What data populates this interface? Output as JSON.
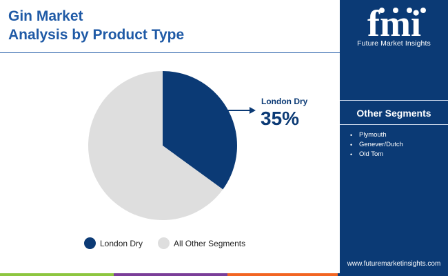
{
  "header": {
    "title_line1": "Gin Market",
    "title_line2": "Analysis by Product Type"
  },
  "brand": {
    "logo_text": "fmi",
    "name": "Future Market Insights",
    "website": "www.futuremarketinsights.com"
  },
  "sidebar": {
    "heading": "Other Segments",
    "items": [
      "Plymouth",
      "Genever/Dutch",
      "Old Tom"
    ]
  },
  "callout": {
    "label": "London Dry",
    "value": "35%"
  },
  "colors": {
    "primary": "#0b3a75",
    "secondary": "#dedede",
    "accent": "#1f5aa6",
    "bar_green": "#8dc63f",
    "bar_purple": "#7a3e98",
    "bar_orange": "#f26522"
  },
  "chart_data": {
    "type": "pie",
    "title": "Gin Market Analysis by Product Type",
    "slices": [
      {
        "label": "London Dry",
        "value": 35,
        "color": "#0b3a75"
      },
      {
        "label": "All Other Segments",
        "value": 65,
        "color": "#dedede"
      }
    ],
    "legend_position": "bottom"
  }
}
